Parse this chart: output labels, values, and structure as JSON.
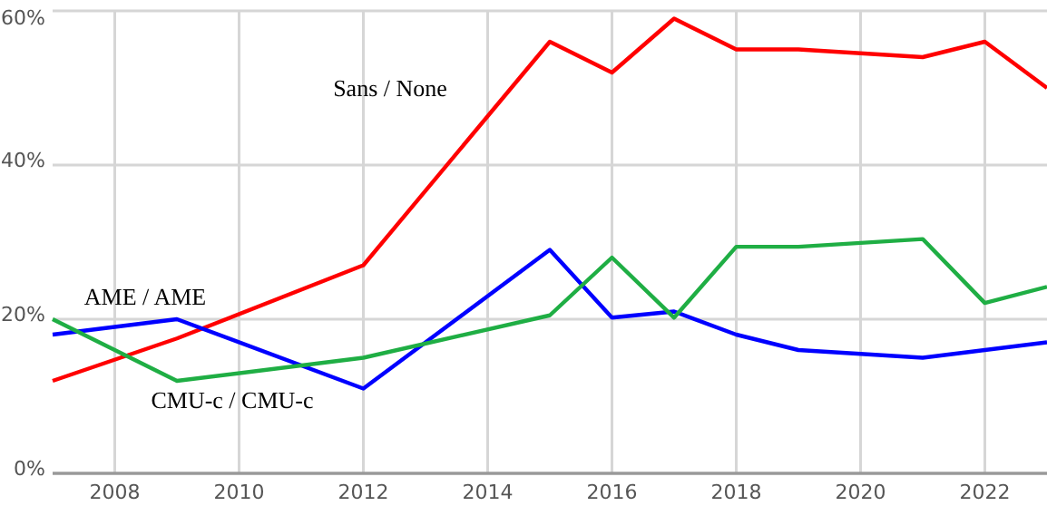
{
  "chart_data": {
    "type": "line",
    "xlim": [
      2007,
      2023
    ],
    "xticks": [
      2008,
      2010,
      2012,
      2014,
      2016,
      2018,
      2020,
      2022
    ],
    "ylim": [
      0,
      60
    ],
    "yticks": [
      {
        "value": 0,
        "label": "0%"
      },
      {
        "value": 20,
        "label": "20%"
      },
      {
        "value": 40,
        "label": "40%"
      },
      {
        "value": 60,
        "label": "60%"
      }
    ],
    "grid": true,
    "legend": false,
    "marker": "none",
    "line_style": "solid",
    "series": [
      {
        "name": "Sans / None",
        "color": "#ff0000",
        "x": [
          2007,
          2009,
          2012,
          2015,
          2016,
          2017,
          2018,
          2019,
          2021,
          2022,
          2023
        ],
        "values": [
          12,
          17.5,
          27,
          56,
          52,
          59,
          55,
          55,
          54,
          56,
          50
        ]
      },
      {
        "name": "AME / AME",
        "color": "#0000ff",
        "x": [
          2007,
          2009,
          2012,
          2015,
          2016,
          2017,
          2018,
          2019,
          2021,
          2022,
          2023
        ],
        "values": [
          18,
          20,
          11,
          29,
          20.2,
          21,
          18,
          16,
          15,
          16,
          17
        ]
      },
      {
        "name": "CMU-c / CMU-c",
        "color": "#1fae44",
        "x": [
          2007,
          2009,
          2012,
          2015,
          2016,
          2017,
          2018,
          2019,
          2021,
          2022,
          2023
        ],
        "values": [
          20,
          12,
          15,
          20.5,
          28,
          20.2,
          29.4,
          29.4,
          30.4,
          22.1,
          24.2
        ]
      }
    ]
  }
}
